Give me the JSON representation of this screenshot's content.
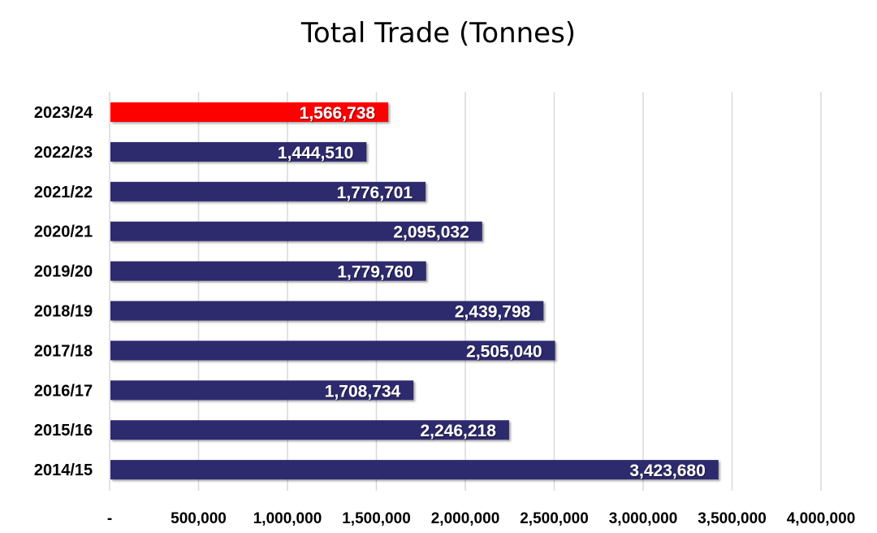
{
  "chart_data": {
    "type": "bar",
    "orientation": "horizontal",
    "title": "Total Trade (Tonnes)",
    "xlabel": "",
    "ylabel": "",
    "xlim": [
      0,
      4000000
    ],
    "grid": "vertical",
    "legend": "none",
    "categories": [
      "2023/24",
      "2022/23",
      "2021/22",
      "2020/21",
      "2019/20",
      "2018/19",
      "2017/18",
      "2016/17",
      "2015/16",
      "2014/15"
    ],
    "values": [
      1566738,
      1444510,
      1776701,
      2095032,
      1779760,
      2439798,
      2505040,
      1708734,
      2246218,
      3423680
    ],
    "data_labels": [
      "1,566,738",
      "1,444,510",
      "1,776,701",
      "2,095,032",
      "1,779,760",
      "2,439,798",
      "2,505,040",
      "1,708,734",
      "2,246,218",
      "3,423,680"
    ],
    "highlight_index": 0,
    "x_ticks": [
      0,
      500000,
      1000000,
      1500000,
      2000000,
      2500000,
      3000000,
      3500000,
      4000000
    ],
    "x_tick_labels": [
      "-",
      "500,000",
      "1,000,000",
      "1,500,000",
      "2,000,000",
      "2,500,000",
      "3,000,000",
      "3,500,000",
      "4,000,000"
    ],
    "colors": {
      "bar": "#2e2c6e",
      "highlight": "#ff0000",
      "grid": "#d9d9d9"
    }
  }
}
